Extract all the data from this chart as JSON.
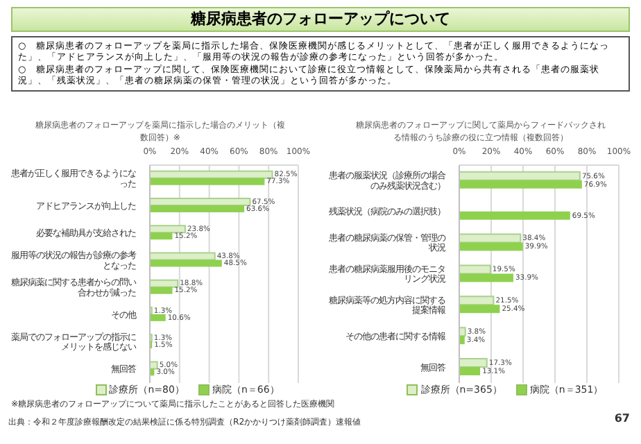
{
  "chart_data": [
    {
      "type": "other",
      "title": "糖尿病患者のフォローアップについて",
      "annotations": [
        "○　糖尿病患者のフォローアップを薬局に指示した場合、保険医療機関が感じるメリットとして、「患者が正しく服用できるようになった」、「アドヒアランスが向上した」、「服用等の状況の報告が診療の参考になった」という回答が多かった。",
        "○　糖尿病患者のフォローアップに関して、保険医療機関において診療に役立つ情報として、保険薬局から共有される「患者の服薬状況」、「残薬状況」、「患者の糖尿病薬の保管・管理の状況」という回答が多かった。"
      ]
    },
    {
      "type": "bar",
      "orientation": "horizontal",
      "title": "糖尿病患者のフォローアップを薬局に指示した場合のメリット（複数回答）※",
      "categories": [
        "患者が正しく服用できるようになった",
        "アドヒアランスが向上した",
        "必要な補助具が支給された",
        "服用等の状況の報告が診療の参考となった",
        "糖尿病薬に関する患者からの問い合わせが減った",
        "その他",
        "薬局でのフォローアップの指示にメリットを感じない",
        "無回答"
      ],
      "series": [
        {
          "name": "診療所（n=80）",
          "color": "#dcefc8",
          "values": [
            82.5,
            67.5,
            23.8,
            43.8,
            18.8,
            1.3,
            1.3,
            5.0
          ],
          "value_labels": [
            "82.5%",
            "67.5%",
            "23.8%",
            "43.8%",
            "18.8%",
            "1.3%",
            "1.3%",
            "5.0%"
          ]
        },
        {
          "name": "病院（n＝66）",
          "color": "#8fd14f",
          "values": [
            77.3,
            63.6,
            15.2,
            48.5,
            15.2,
            10.6,
            1.5,
            3.0
          ],
          "value_labels": [
            "77.3%",
            "63.6%",
            "15.2%",
            "48.5%",
            "15.2%",
            "10.6%",
            "1.5%",
            "3.0%"
          ]
        }
      ],
      "xlim": [
        0,
        100
      ],
      "xticks": [
        {
          "value": 0,
          "label": "0%"
        },
        {
          "value": 20,
          "label": "20%"
        },
        {
          "value": 40,
          "label": "40%"
        },
        {
          "value": 60,
          "label": "60%"
        },
        {
          "value": 80,
          "label": "80%"
        },
        {
          "value": 100,
          "label": "100%"
        }
      ],
      "grid": "x",
      "legend": "bottom",
      "annotations": [
        "※糖尿病患者のフォローアップについて薬局に指示したことがあると回答した医療機関",
        "出典：令和２年度診療報酬改定の結果検証に係る特別調査（R2かかりつけ薬剤師調査）速報値"
      ]
    },
    {
      "type": "bar",
      "orientation": "horizontal",
      "title": "糖尿病患者のフォローアップに関して薬局からフィードバックされる情報のうち診療の役に立つ情報（複数回答）",
      "categories": [
        "患者の服薬状況（診療所の場合のみ残薬状況含む）",
        "残薬状況（病院のみの選択肢）",
        "患者の糖尿病薬の保管・管理の状況",
        "患者の糖尿病薬服用後のモニタリング状況",
        "糖尿病薬等の処方内容に関する提案情報",
        "その他の患者に関する情報",
        "無回答"
      ],
      "series": [
        {
          "name": "診療所（n=365）",
          "color": "#dcefc8",
          "values": [
            75.6,
            null,
            38.4,
            19.5,
            21.5,
            3.8,
            17.3
          ],
          "value_labels": [
            "75.6%",
            null,
            "38.4%",
            "19.5%",
            "21.5%",
            "3.8%",
            "17.3%"
          ]
        },
        {
          "name": "病院（n＝351）",
          "color": "#8fd14f",
          "values": [
            76.9,
            69.5,
            39.9,
            33.9,
            25.4,
            3.4,
            13.1
          ],
          "value_labels": [
            "76.9%",
            "69.5%",
            "39.9%",
            "33.9%",
            "25.4%",
            "3.4%",
            "13.1%"
          ]
        }
      ],
      "xlim": [
        0,
        100
      ],
      "xticks": [
        {
          "value": 0,
          "label": "0%"
        },
        {
          "value": 20,
          "label": "20%"
        },
        {
          "value": 40,
          "label": "40%"
        },
        {
          "value": 60,
          "label": "60%"
        },
        {
          "value": 80,
          "label": "80%"
        },
        {
          "value": 100,
          "label": "100%"
        }
      ],
      "grid": "x",
      "legend": "bottom",
      "annotations": [
        "67"
      ]
    }
  ]
}
